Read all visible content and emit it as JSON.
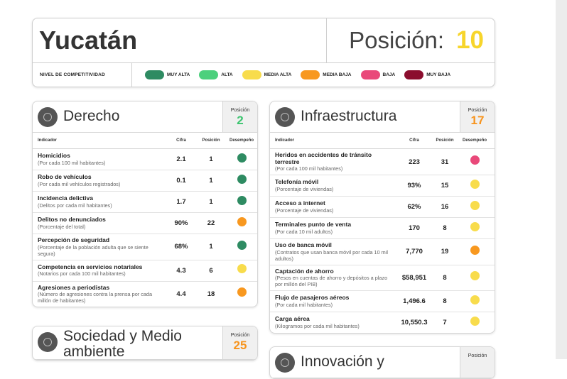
{
  "header": {
    "state": "Yucatán",
    "position_label": "Posición:",
    "position": "10",
    "position_color": "#f7d52b",
    "level_label": "NIVEL DE COMPETITIVIDAD",
    "legend": [
      {
        "label": "MUY ALTA",
        "color": "#2e8b62"
      },
      {
        "label": "ALTA",
        "color": "#4cd07d"
      },
      {
        "label": "MEDIA ALTA",
        "color": "#f8dc4c"
      },
      {
        "label": "MEDIA BAJA",
        "color": "#f8981f"
      },
      {
        "label": "BAJA",
        "color": "#e9497a"
      },
      {
        "label": "MUY BAJA",
        "color": "#8b0d2e"
      }
    ]
  },
  "sections": [
    {
      "title": "Derecho",
      "position_label": "Posición",
      "position": "2",
      "position_color": "#3cc46f",
      "columns": [
        "Indicador",
        "Cifra",
        "Posición",
        "Desempeño"
      ],
      "rows": [
        {
          "name": "Homicidios",
          "unit": "(Por cada 100 mil habitantes)",
          "value": "2.1",
          "position": "1",
          "color": "#2e8b62"
        },
        {
          "name": "Robo de vehículos",
          "unit": "(Por cada mil vehículos registrados)",
          "value": "0.1",
          "position": "1",
          "color": "#2e8b62"
        },
        {
          "name": "Incidencia delictiva",
          "unit": "(Delitos por cada mil habitantes)",
          "value": "1.7",
          "position": "1",
          "color": "#2e8b62"
        },
        {
          "name": "Delitos no denunciados",
          "unit": "(Porcentaje del total)",
          "value": "90%",
          "position": "22",
          "color": "#f8981f"
        },
        {
          "name": "Percepción de seguridad",
          "unit": "(Porcentaje de la población adulta que se siente segura)",
          "value": "68%",
          "position": "1",
          "color": "#2e8b62"
        },
        {
          "name": "Competencia en servicios notariales",
          "unit": "(Notarios por cada 100 mil habitantes)",
          "value": "4.3",
          "position": "6",
          "color": "#f8dc4c"
        },
        {
          "name": "Agresiones a periodistas",
          "unit": "(Número de agresiones contra la prensa por cada millón de habitantes)",
          "value": "4.4",
          "position": "18",
          "color": "#f8981f"
        }
      ]
    },
    {
      "title": "Infraestructura",
      "position_label": "Posición",
      "position": "17",
      "position_color": "#f7941d",
      "columns": [
        "Indicador",
        "Cifra",
        "Posición",
        "Desempeño"
      ],
      "rows": [
        {
          "name": "Heridos en accidentes de tránsito terrestre",
          "unit": "(Por cada 100 mil habitantes)",
          "value": "223",
          "position": "31",
          "color": "#e9497a"
        },
        {
          "name": "Telefonía móvil",
          "unit": "(Porcentaje de viviendas)",
          "value": "93%",
          "position": "15",
          "color": "#f8dc4c"
        },
        {
          "name": "Acceso a internet",
          "unit": "(Porcentaje de viviendas)",
          "value": "62%",
          "position": "16",
          "color": "#f8dc4c"
        },
        {
          "name": "Terminales punto de venta",
          "unit": "(Por cada 10 mil adultos)",
          "value": "170",
          "position": "8",
          "color": "#f8dc4c"
        },
        {
          "name": "Uso de banca móvil",
          "unit": "(Contratos que usan banca móvil por cada 10 mil adultos)",
          "value": "7,770",
          "position": "19",
          "color": "#f8981f"
        },
        {
          "name": "Captación de ahorro",
          "unit": "(Pesos en cuentas de ahorro y depósitos a plazo por millón del PIB)",
          "value": "$58,951",
          "position": "8",
          "color": "#f8dc4c"
        },
        {
          "name": "Flujo de pasajeros aéreos",
          "unit": "(Por cada mil habitantes)",
          "value": "1,496.6",
          "position": "8",
          "color": "#f8dc4c"
        },
        {
          "name": "Carga aérea",
          "unit": "(Kilogramos por cada mil habitantes)",
          "value": "10,550.3",
          "position": "7",
          "color": "#f8dc4c"
        }
      ]
    },
    {
      "title": "Sociedad y Medio ambiente",
      "position_label": "Posición",
      "position": "25",
      "position_color": "#f7941d"
    },
    {
      "title": "Innovación y",
      "position_label": "Posición"
    }
  ]
}
